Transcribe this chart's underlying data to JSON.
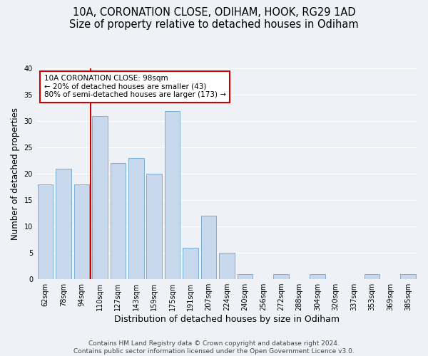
{
  "title": "10A, CORONATION CLOSE, ODIHAM, HOOK, RG29 1AD",
  "subtitle": "Size of property relative to detached houses in Odiham",
  "xlabel": "Distribution of detached houses by size in Odiham",
  "ylabel": "Number of detached properties",
  "bin_labels": [
    "62sqm",
    "78sqm",
    "94sqm",
    "110sqm",
    "127sqm",
    "143sqm",
    "159sqm",
    "175sqm",
    "191sqm",
    "207sqm",
    "224sqm",
    "240sqm",
    "256sqm",
    "272sqm",
    "288sqm",
    "304sqm",
    "320sqm",
    "337sqm",
    "353sqm",
    "369sqm",
    "385sqm"
  ],
  "bar_heights": [
    18,
    21,
    18,
    31,
    22,
    23,
    20,
    32,
    6,
    12,
    5,
    1,
    0,
    1,
    0,
    1,
    0,
    0,
    1,
    0,
    1
  ],
  "bar_color": "#c8d8ec",
  "bar_edge_color": "#7bafd4",
  "vline_index": 2.5,
  "vline_color": "#cc0000",
  "annotation_text": "10A CORONATION CLOSE: 98sqm\n← 20% of detached houses are smaller (43)\n80% of semi-detached houses are larger (173) →",
  "annotation_box_edge": "#cc0000",
  "ylim": [
    0,
    40
  ],
  "yticks": [
    0,
    5,
    10,
    15,
    20,
    25,
    30,
    35,
    40
  ],
  "footer1": "Contains HM Land Registry data © Crown copyright and database right 2024.",
  "footer2": "Contains public sector information licensed under the Open Government Licence v3.0.",
  "background_color": "#eef2f7",
  "title_fontsize": 10.5,
  "xlabel_fontsize": 9,
  "ylabel_fontsize": 8.5,
  "tick_fontsize": 7,
  "footer_fontsize": 6.5
}
